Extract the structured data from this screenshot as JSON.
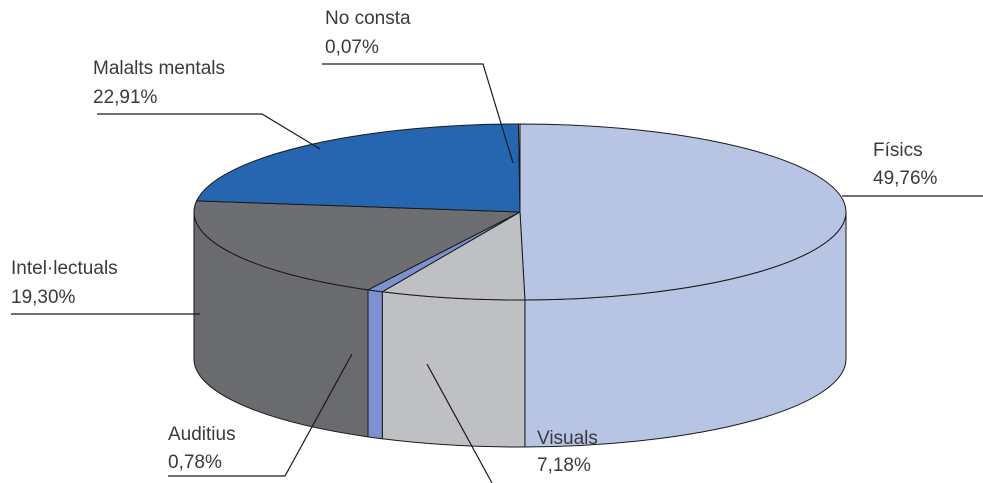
{
  "chart_data": {
    "type": "pie",
    "style": "3d-exploded-none",
    "slices": [
      {
        "key": "fisics",
        "label": "Físics",
        "value_text": "49,76%",
        "value": 49.76,
        "color": "#b8c4e4",
        "side_color": "#b8c4e4"
      },
      {
        "key": "visuals",
        "label": "Visuals",
        "value_text": "7,18%",
        "value": 7.18,
        "color": "#bfc0c3",
        "side_color": "#bfc0c3"
      },
      {
        "key": "auditius",
        "label": "Auditius",
        "value_text": "0,78%",
        "value": 0.78,
        "color": "#7d90cf",
        "side_color": "#7d90cf"
      },
      {
        "key": "intellectuals",
        "label": "Intel·lectuals",
        "value_text": "19,30%",
        "value": 19.3,
        "color": "#6d6e71",
        "side_color": "#6a6b6e"
      },
      {
        "key": "malalts",
        "label": "Malalts mentals",
        "value_text": "22,91%",
        "value": 22.91,
        "color": "#2666b0",
        "side_color": "#2666b0"
      },
      {
        "key": "noconsta",
        "label": "No consta",
        "value_text": "0,07%",
        "value": 0.07,
        "color": "#e8e8e8",
        "side_color": "#e8e8e8"
      }
    ],
    "title": "",
    "legend": "none"
  }
}
